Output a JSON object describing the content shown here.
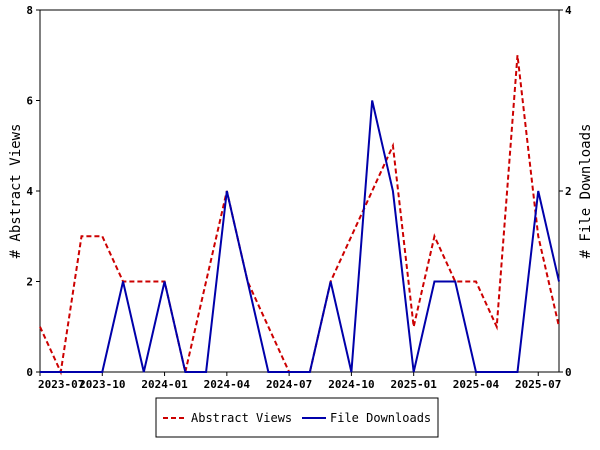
{
  "chart_data": {
    "type": "line",
    "title": "",
    "xlabel": "",
    "ylabel": "# Abstract Views",
    "y2label": "# File Downloads",
    "x_tick_labels": [
      "2023-07",
      "2023-10",
      "2024-01",
      "2024-04",
      "2024-07",
      "2024-10",
      "2025-01",
      "2025-04",
      "2025-07"
    ],
    "x": [
      "2023-07",
      "2023-08",
      "2023-09",
      "2023-10",
      "2023-11",
      "2023-12",
      "2024-01",
      "2024-02",
      "2024-03",
      "2024-04",
      "2024-05",
      "2024-06",
      "2024-07",
      "2024-08",
      "2024-09",
      "2024-10",
      "2024-11",
      "2024-12",
      "2025-01",
      "2025-02",
      "2025-03",
      "2025-04",
      "2025-05",
      "2025-06",
      "2025-07",
      "2025-08"
    ],
    "ylim": [
      0,
      8
    ],
    "y_ticks": [
      0,
      2,
      4,
      6,
      8
    ],
    "y2lim": [
      0,
      4
    ],
    "y2_ticks": [
      0,
      2,
      4
    ],
    "legend_position": "bottom",
    "series": [
      {
        "name": "Abstract Views",
        "axis": "left",
        "color": "#cc0000",
        "style": "dashed",
        "values": [
          1,
          0,
          3,
          3,
          2,
          2,
          2,
          0,
          2,
          4,
          2,
          1,
          0,
          0,
          2,
          3,
          4,
          5,
          1,
          3,
          2,
          2,
          1,
          7,
          3,
          1
        ]
      },
      {
        "name": "File Downloads",
        "axis": "right",
        "color": "#0000aa",
        "style": "solid",
        "values": [
          0,
          0,
          0,
          0,
          1,
          0,
          1,
          0,
          0,
          2,
          1,
          0,
          0,
          0,
          1,
          0,
          3,
          2,
          0,
          1,
          1,
          0,
          0,
          0,
          2,
          1
        ]
      }
    ]
  }
}
